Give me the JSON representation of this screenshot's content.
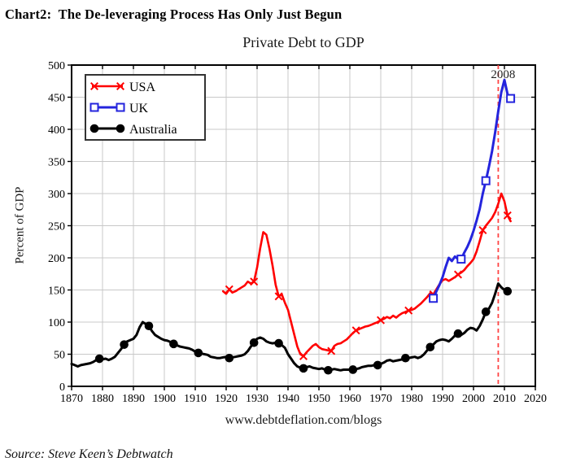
{
  "page": {
    "heading": "Chart2:  The De-leveraging Process Has Only Just Begun",
    "source_note": "Source: Steve Keen’s Debtwatch"
  },
  "chart_data": {
    "type": "line",
    "title": "Private Debt to GDP",
    "ylabel": "Percent of GDP",
    "xlabel": "www.debtdeflation.com/blogs",
    "xlim": [
      1870,
      2020
    ],
    "ylim": [
      0,
      500
    ],
    "x_ticks": [
      1870,
      1880,
      1890,
      1900,
      1910,
      1920,
      1930,
      1940,
      1950,
      1960,
      1970,
      1980,
      1990,
      2000,
      2010,
      2020
    ],
    "y_ticks": [
      0,
      50,
      100,
      150,
      200,
      250,
      300,
      350,
      400,
      450,
      500
    ],
    "grid": true,
    "legend_position": "top-left",
    "colors": {
      "grid": "#c8c8c8",
      "axis": "#000000",
      "annotation": "#222222"
    },
    "vline": {
      "x": 2008,
      "color": "#ff4444",
      "style": "dashed"
    },
    "annotation": {
      "text": "2008",
      "x": 2008,
      "y": 490
    },
    "series": [
      {
        "name": "USA",
        "color": "#ff0000",
        "marker": "x",
        "width": 2.6,
        "marker_years": [
          1921,
          1929,
          1937,
          1945,
          1954,
          1962,
          1970,
          1979,
          1987,
          1995,
          2003,
          2011
        ],
        "points": [
          [
            1919,
            148
          ],
          [
            1920,
            144
          ],
          [
            1921,
            151
          ],
          [
            1922,
            146
          ],
          [
            1923,
            148
          ],
          [
            1924,
            151
          ],
          [
            1925,
            154
          ],
          [
            1926,
            157
          ],
          [
            1927,
            163
          ],
          [
            1928,
            160
          ],
          [
            1929,
            163
          ],
          [
            1930,
            185
          ],
          [
            1931,
            215
          ],
          [
            1932,
            240
          ],
          [
            1933,
            236
          ],
          [
            1934,
            214
          ],
          [
            1935,
            188
          ],
          [
            1936,
            158
          ],
          [
            1937,
            140
          ],
          [
            1938,
            143
          ],
          [
            1939,
            130
          ],
          [
            1940,
            119
          ],
          [
            1941,
            100
          ],
          [
            1942,
            81
          ],
          [
            1943,
            62
          ],
          [
            1944,
            50
          ],
          [
            1945,
            47
          ],
          [
            1946,
            53
          ],
          [
            1947,
            58
          ],
          [
            1948,
            63
          ],
          [
            1949,
            66
          ],
          [
            1950,
            61
          ],
          [
            1951,
            58
          ],
          [
            1952,
            57
          ],
          [
            1953,
            56
          ],
          [
            1954,
            55
          ],
          [
            1955,
            63
          ],
          [
            1956,
            66
          ],
          [
            1957,
            67
          ],
          [
            1958,
            70
          ],
          [
            1959,
            73
          ],
          [
            1960,
            78
          ],
          [
            1961,
            83
          ],
          [
            1962,
            87
          ],
          [
            1963,
            89
          ],
          [
            1964,
            91
          ],
          [
            1965,
            93
          ],
          [
            1966,
            94
          ],
          [
            1967,
            96
          ],
          [
            1968,
            98
          ],
          [
            1969,
            100
          ],
          [
            1970,
            103
          ],
          [
            1971,
            105
          ],
          [
            1972,
            108
          ],
          [
            1973,
            106
          ],
          [
            1974,
            110
          ],
          [
            1975,
            107
          ],
          [
            1976,
            111
          ],
          [
            1977,
            114
          ],
          [
            1978,
            116
          ],
          [
            1979,
            118
          ],
          [
            1980,
            119
          ],
          [
            1981,
            121
          ],
          [
            1982,
            125
          ],
          [
            1983,
            129
          ],
          [
            1984,
            134
          ],
          [
            1985,
            139
          ],
          [
            1986,
            145
          ],
          [
            1987,
            143
          ],
          [
            1988,
            151
          ],
          [
            1989,
            159
          ],
          [
            1990,
            165
          ],
          [
            1991,
            167
          ],
          [
            1992,
            164
          ],
          [
            1993,
            167
          ],
          [
            1994,
            170
          ],
          [
            1995,
            174
          ],
          [
            1996,
            177
          ],
          [
            1997,
            181
          ],
          [
            1998,
            187
          ],
          [
            1999,
            192
          ],
          [
            2000,
            198
          ],
          [
            2001,
            210
          ],
          [
            2002,
            226
          ],
          [
            2003,
            243
          ],
          [
            2004,
            250
          ],
          [
            2005,
            256
          ],
          [
            2006,
            262
          ],
          [
            2007,
            271
          ],
          [
            2008,
            284
          ],
          [
            2009,
            300
          ],
          [
            2010,
            288
          ],
          [
            2011,
            266
          ],
          [
            2012,
            257
          ]
        ]
      },
      {
        "name": "UK",
        "color": "#2424dd",
        "marker": "square-open",
        "width": 3,
        "marker_years": [
          1987,
          1996,
          2004,
          2012
        ],
        "points": [
          [
            1987,
            137
          ],
          [
            1988,
            148
          ],
          [
            1989,
            158
          ],
          [
            1990,
            170
          ],
          [
            1991,
            186
          ],
          [
            1992,
            200
          ],
          [
            1993,
            195
          ],
          [
            1994,
            202
          ],
          [
            1995,
            198
          ],
          [
            1996,
            198
          ],
          [
            1997,
            208
          ],
          [
            1998,
            217
          ],
          [
            1999,
            228
          ],
          [
            2000,
            242
          ],
          [
            2001,
            258
          ],
          [
            2002,
            276
          ],
          [
            2003,
            300
          ],
          [
            2004,
            320
          ],
          [
            2005,
            342
          ],
          [
            2006,
            366
          ],
          [
            2007,
            395
          ],
          [
            2008,
            428
          ],
          [
            2009,
            458
          ],
          [
            2010,
            477
          ],
          [
            2011,
            455
          ],
          [
            2012,
            448
          ]
        ]
      },
      {
        "name": "Australia",
        "color": "#000000",
        "marker": "circle",
        "width": 3,
        "marker_years": [
          1879,
          1887,
          1895,
          1903,
          1911,
          1921,
          1929,
          1937,
          1945,
          1953,
          1961,
          1969,
          1978,
          1986,
          1995,
          2004,
          2011
        ],
        "points": [
          [
            1870,
            35
          ],
          [
            1871,
            33
          ],
          [
            1872,
            31
          ],
          [
            1873,
            33
          ],
          [
            1874,
            34
          ],
          [
            1875,
            35
          ],
          [
            1876,
            36
          ],
          [
            1877,
            38
          ],
          [
            1878,
            41
          ],
          [
            1879,
            43
          ],
          [
            1880,
            42
          ],
          [
            1881,
            43
          ],
          [
            1882,
            41
          ],
          [
            1883,
            43
          ],
          [
            1884,
            46
          ],
          [
            1885,
            52
          ],
          [
            1886,
            58
          ],
          [
            1887,
            65
          ],
          [
            1888,
            70
          ],
          [
            1889,
            72
          ],
          [
            1890,
            74
          ],
          [
            1891,
            80
          ],
          [
            1892,
            92
          ],
          [
            1893,
            100
          ],
          [
            1894,
            97
          ],
          [
            1895,
            94
          ],
          [
            1896,
            86
          ],
          [
            1897,
            80
          ],
          [
            1898,
            77
          ],
          [
            1899,
            74
          ],
          [
            1900,
            72
          ],
          [
            1901,
            71
          ],
          [
            1902,
            69
          ],
          [
            1903,
            66
          ],
          [
            1904,
            64
          ],
          [
            1905,
            62
          ],
          [
            1906,
            61
          ],
          [
            1907,
            60
          ],
          [
            1908,
            59
          ],
          [
            1909,
            57
          ],
          [
            1910,
            54
          ],
          [
            1911,
            52
          ],
          [
            1912,
            51
          ],
          [
            1913,
            50
          ],
          [
            1914,
            49
          ],
          [
            1915,
            46
          ],
          [
            1916,
            45
          ],
          [
            1917,
            44
          ],
          [
            1918,
            44
          ],
          [
            1919,
            45
          ],
          [
            1920,
            46
          ],
          [
            1921,
            44
          ],
          [
            1922,
            45
          ],
          [
            1923,
            46
          ],
          [
            1924,
            47
          ],
          [
            1925,
            48
          ],
          [
            1926,
            50
          ],
          [
            1927,
            55
          ],
          [
            1928,
            62
          ],
          [
            1929,
            68
          ],
          [
            1930,
            74
          ],
          [
            1931,
            76
          ],
          [
            1932,
            74
          ],
          [
            1933,
            70
          ],
          [
            1934,
            68
          ],
          [
            1935,
            67
          ],
          [
            1936,
            68
          ],
          [
            1937,
            67
          ],
          [
            1938,
            64
          ],
          [
            1939,
            60
          ],
          [
            1940,
            50
          ],
          [
            1941,
            43
          ],
          [
            1942,
            36
          ],
          [
            1943,
            31
          ],
          [
            1944,
            29
          ],
          [
            1945,
            28
          ],
          [
            1946,
            30
          ],
          [
            1947,
            31
          ],
          [
            1948,
            29
          ],
          [
            1949,
            28
          ],
          [
            1950,
            27
          ],
          [
            1951,
            28
          ],
          [
            1952,
            26
          ],
          [
            1953,
            25
          ],
          [
            1954,
            26
          ],
          [
            1955,
            27
          ],
          [
            1956,
            26
          ],
          [
            1957,
            25
          ],
          [
            1958,
            26
          ],
          [
            1959,
            26
          ],
          [
            1960,
            26
          ],
          [
            1961,
            26
          ],
          [
            1962,
            27
          ],
          [
            1963,
            28
          ],
          [
            1964,
            30
          ],
          [
            1965,
            31
          ],
          [
            1966,
            32
          ],
          [
            1967,
            32
          ],
          [
            1968,
            33
          ],
          [
            1969,
            33
          ],
          [
            1970,
            35
          ],
          [
            1971,
            37
          ],
          [
            1972,
            40
          ],
          [
            1973,
            41
          ],
          [
            1974,
            39
          ],
          [
            1975,
            40
          ],
          [
            1976,
            41
          ],
          [
            1977,
            42
          ],
          [
            1978,
            44
          ],
          [
            1979,
            44
          ],
          [
            1980,
            45
          ],
          [
            1981,
            46
          ],
          [
            1982,
            44
          ],
          [
            1983,
            46
          ],
          [
            1984,
            50
          ],
          [
            1985,
            56
          ],
          [
            1986,
            61
          ],
          [
            1987,
            65
          ],
          [
            1988,
            70
          ],
          [
            1989,
            72
          ],
          [
            1990,
            73
          ],
          [
            1991,
            72
          ],
          [
            1992,
            70
          ],
          [
            1993,
            74
          ],
          [
            1994,
            79
          ],
          [
            1995,
            82
          ],
          [
            1996,
            80
          ],
          [
            1997,
            83
          ],
          [
            1998,
            88
          ],
          [
            1999,
            91
          ],
          [
            2000,
            90
          ],
          [
            2001,
            87
          ],
          [
            2002,
            94
          ],
          [
            2003,
            104
          ],
          [
            2004,
            116
          ],
          [
            2005,
            121
          ],
          [
            2006,
            130
          ],
          [
            2007,
            144
          ],
          [
            2008,
            160
          ],
          [
            2009,
            154
          ],
          [
            2010,
            150
          ],
          [
            2011,
            148
          ]
        ]
      }
    ]
  }
}
